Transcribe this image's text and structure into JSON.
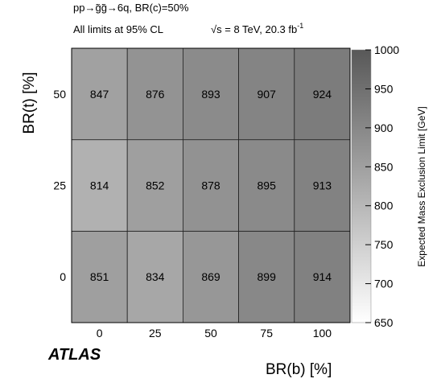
{
  "header": {
    "process": "pp→g̃g̃→6q, BR(c)=50%",
    "limits_note": "All limits at 95% CL",
    "sqrt_s": "√s = 8 TeV, 20.3 fb",
    "lumi_exponent": "-1"
  },
  "logo": {
    "text": "ATLAS"
  },
  "chart_data": {
    "type": "heatmap",
    "x": [
      0,
      25,
      50,
      75,
      100
    ],
    "y": [
      0,
      25,
      50
    ],
    "x_tick_labels": [
      "0",
      "25",
      "50",
      "75",
      "100"
    ],
    "y_tick_labels": [
      "0",
      "25",
      "50"
    ],
    "xlabel": "BR(b) [%]",
    "ylabel": "BR(t) [%]",
    "values": [
      [
        851,
        834,
        869,
        899,
        914
      ],
      [
        814,
        852,
        878,
        895,
        913
      ],
      [
        847,
        876,
        893,
        907,
        924
      ]
    ],
    "colorbar": {
      "label": "Expected Mass Exclusion Limit [GeV]",
      "range": [
        650,
        1000
      ],
      "ticks": [
        650,
        700,
        750,
        800,
        850,
        900,
        950,
        1000
      ],
      "tick_labels": [
        "650",
        "700",
        "750",
        "800",
        "850",
        "900",
        "950",
        "1000"
      ],
      "colormap": "grayscale",
      "color_min": "#ffffff",
      "color_max": "#585858"
    }
  }
}
